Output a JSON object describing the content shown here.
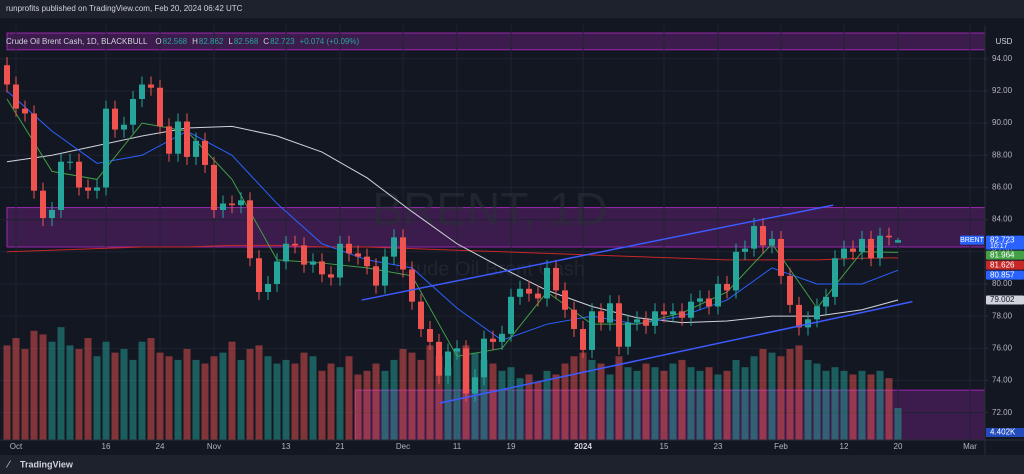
{
  "header": {
    "publisher": "runprofits published on TradingView.com, Feb 20, 2024 06:42 UTC",
    "brand": "TradingView"
  },
  "chart_data": {
    "type": "candlestick",
    "symbol": "Crude Oil Brent Cash, 1D, BLACKBULL",
    "ohlc_prefixes": [
      "O",
      "H",
      "L",
      "C"
    ],
    "change": "+0.074 (+0.09%)",
    "currency": "USD",
    "watermark": "BRENT, 1D",
    "watermark_subtitle": "Crude Oil Brent Cash",
    "ticker": "BRENT",
    "countdown": "10:17",
    "categories": [
      null,
      "Oct",
      null,
      null,
      null,
      null,
      null,
      null,
      null,
      null,
      null,
      "16",
      null,
      null,
      null,
      null,
      null,
      "24",
      null,
      null,
      null,
      null,
      null,
      "Nov",
      null,
      null,
      null,
      null,
      null,
      null,
      null,
      "13",
      null,
      null,
      null,
      null,
      null,
      "21",
      null,
      null,
      null,
      null,
      null,
      null,
      "Dec",
      null,
      null,
      null,
      null,
      null,
      "11",
      null,
      null,
      null,
      null,
      null,
      "19",
      null,
      null,
      null,
      null,
      null,
      null,
      null,
      "2024",
      null,
      null,
      null,
      null,
      null,
      null,
      null,
      null,
      "15",
      null,
      null,
      null,
      null,
      null,
      "23",
      null,
      null,
      null,
      null,
      null,
      null,
      "Feb",
      null,
      null,
      null,
      null,
      null,
      null,
      "12",
      null,
      null,
      null,
      null,
      null,
      "20",
      null,
      null,
      null,
      null,
      null,
      null,
      null,
      "Mar"
    ],
    "open": [
      93.6,
      92.4,
      90.9,
      90.6,
      85.8,
      84.1,
      84.6,
      87.6,
      87.6,
      86.0,
      85.8,
      86.0,
      90.9,
      89.6,
      89.9,
      91.5,
      92.4,
      92.2,
      89.8,
      88.1,
      90.1,
      87.9,
      88.9,
      87.4,
      84.6,
      85.0,
      84.9,
      85.2,
      81.6,
      79.5,
      80.0,
      81.4,
      82.5,
      82.4,
      81.2,
      81.4,
      80.6,
      80.4,
      82.5,
      81.9,
      81.7,
      81.1,
      79.9,
      81.7,
      82.9,
      80.9,
      78.9,
      77.2,
      76.4,
      74.3,
      75.8,
      76.0,
      73.2,
      74.2,
      76.6,
      76.4,
      76.9,
      79.2,
      79.7,
      79.4,
      79.1,
      81.0,
      79.6,
      78.4,
      77.2,
      75.9,
      78.3,
      77.6,
      78.8,
      76.1,
      77.6,
      77.8,
      77.4,
      78.3,
      78.1,
      78.3,
      77.9,
      78.9,
      79.1,
      78.6,
      80.0,
      79.6,
      82.0,
      82.2,
      83.6,
      82.4,
      82.8,
      80.5,
      78.7,
      77.3,
      77.8,
      78.6,
      79.2,
      81.6,
      82.2,
      82.0,
      82.8,
      81.6,
      83.0,
      82.568,
      null,
      null,
      null,
      null,
      null,
      null,
      null,
      null
    ],
    "high": [
      94.1,
      92.9,
      91.4,
      91.1,
      86.3,
      85.1,
      88.1,
      88.1,
      88.1,
      86.5,
      86.5,
      91.4,
      91.4,
      90.4,
      92.0,
      92.9,
      92.9,
      92.7,
      90.3,
      90.6,
      90.6,
      89.4,
      89.4,
      87.9,
      85.5,
      85.5,
      85.7,
      85.7,
      82.1,
      80.5,
      81.9,
      83.0,
      83.0,
      82.9,
      81.9,
      81.9,
      81.1,
      83.0,
      83.0,
      82.4,
      82.2,
      81.6,
      82.2,
      83.4,
      83.4,
      81.4,
      79.4,
      77.7,
      76.9,
      76.3,
      76.5,
      76.5,
      74.7,
      77.1,
      77.1,
      77.4,
      79.7,
      80.2,
      80.2,
      79.9,
      81.5,
      81.5,
      80.1,
      78.9,
      77.7,
      78.8,
      78.8,
      79.3,
      79.3,
      78.1,
      78.3,
      78.3,
      78.8,
      78.8,
      78.8,
      78.8,
      79.4,
      79.6,
      79.6,
      80.5,
      80.5,
      82.5,
      82.7,
      84.1,
      84.1,
      83.3,
      83.3,
      81.0,
      79.2,
      78.3,
      79.1,
      79.7,
      82.1,
      82.7,
      82.7,
      83.3,
      83.3,
      83.5,
      83.5,
      82.862,
      null,
      null,
      null,
      null,
      null,
      null,
      null,
      null
    ],
    "low": [
      91.9,
      90.4,
      90.1,
      85.3,
      83.6,
      83.6,
      84.1,
      87.1,
      85.5,
      85.3,
      85.3,
      85.5,
      89.1,
      89.1,
      89.4,
      91.0,
      91.7,
      89.3,
      87.6,
      87.6,
      87.4,
      87.4,
      86.9,
      84.1,
      84.1,
      84.4,
      84.4,
      81.1,
      79.0,
      79.0,
      79.5,
      80.9,
      81.9,
      80.7,
      80.7,
      80.1,
      79.9,
      79.9,
      81.4,
      81.2,
      80.6,
      79.4,
      79.4,
      81.2,
      80.4,
      78.4,
      76.7,
      75.9,
      73.8,
      73.8,
      75.3,
      72.7,
      72.7,
      73.7,
      75.9,
      75.9,
      76.4,
      78.7,
      78.9,
      78.6,
      78.6,
      79.1,
      77.9,
      76.7,
      75.4,
      75.4,
      77.1,
      77.1,
      75.6,
      75.6,
      77.1,
      76.9,
      76.9,
      77.6,
      77.6,
      77.4,
      77.4,
      78.4,
      78.1,
      78.1,
      79.1,
      79.1,
      81.5,
      81.7,
      81.9,
      81.9,
      80.0,
      78.2,
      76.8,
      76.8,
      77.3,
      78.1,
      78.7,
      81.1,
      81.5,
      81.5,
      81.1,
      81.1,
      82.4,
      82.568,
      null,
      null,
      null,
      null,
      null,
      null,
      null,
      null
    ],
    "close": [
      92.4,
      90.9,
      90.6,
      85.8,
      84.1,
      84.6,
      87.6,
      87.6,
      86.0,
      85.8,
      86.0,
      90.9,
      89.6,
      89.9,
      91.5,
      92.4,
      92.2,
      89.8,
      88.1,
      90.1,
      87.9,
      88.9,
      87.4,
      84.6,
      85.0,
      84.9,
      85.2,
      81.6,
      79.5,
      80.0,
      81.4,
      82.5,
      82.4,
      81.2,
      81.4,
      80.6,
      80.4,
      82.5,
      81.9,
      81.7,
      81.1,
      79.9,
      81.7,
      82.9,
      80.9,
      78.9,
      77.2,
      76.4,
      74.3,
      75.8,
      76.0,
      73.2,
      74.2,
      76.6,
      76.4,
      76.9,
      79.2,
      79.7,
      79.4,
      79.1,
      81.0,
      79.6,
      78.4,
      77.2,
      75.9,
      78.3,
      77.6,
      78.8,
      76.1,
      77.6,
      77.8,
      77.4,
      78.3,
      78.1,
      78.3,
      77.9,
      78.9,
      79.1,
      78.6,
      80.0,
      79.6,
      82.0,
      82.2,
      83.6,
      82.4,
      82.8,
      80.5,
      78.7,
      77.3,
      77.8,
      78.6,
      79.2,
      81.6,
      82.2,
      82.0,
      82.8,
      81.6,
      83.0,
      82.9,
      82.723,
      null,
      null,
      null,
      null,
      null,
      null,
      null,
      null
    ],
    "up_color": "#26a69a",
    "down_color": "#ef5350",
    "volume": {
      "ylim": [
        0,
        57000
      ],
      "last_label": "4.402K",
      "values": [
        13000,
        14000,
        12500,
        15000,
        14500,
        13500,
        15500,
        13000,
        12500,
        14000,
        11500,
        13500,
        12000,
        12500,
        11000,
        13500,
        14000,
        12000,
        11500,
        11000,
        12500,
        11000,
        10500,
        11500,
        12000,
        13500,
        11000,
        12500,
        13000,
        11500,
        10500,
        11000,
        10500,
        12000,
        11500,
        9500,
        10500,
        10000,
        11500,
        9000,
        9500,
        10500,
        9500,
        11000,
        12500,
        12000,
        11000,
        13000,
        11500,
        10000,
        12500,
        13000,
        12000,
        11000,
        10500,
        9500,
        10000,
        8500,
        9000,
        8000,
        9500,
        9000,
        10500,
        11500,
        12000,
        11000,
        10500,
        9000,
        11500,
        10000,
        9500,
        10500,
        10000,
        9500,
        10500,
        11000,
        10000,
        9500,
        10000,
        9000,
        9500,
        11000,
        10000,
        11500,
        12500,
        12000,
        11500,
        12500,
        13000,
        11000,
        10500,
        9500,
        10000,
        9500,
        9000,
        9500,
        9000,
        9500,
        8500,
        4402,
        null,
        null,
        null,
        null,
        null,
        null,
        null,
        null
      ]
    },
    "moving_averages": [
      {
        "color": "#c62828",
        "x": [
          0,
          5,
          10,
          15,
          20,
          25,
          30,
          35,
          40,
          45,
          50,
          55,
          60,
          65,
          70,
          75,
          80,
          85,
          90,
          95,
          99
        ],
        "values": [
          82.0,
          82.1,
          82.2,
          82.3,
          82.3,
          82.4,
          82.4,
          82.3,
          82.3,
          82.2,
          82.1,
          82.0,
          81.9,
          81.8,
          81.7,
          81.6,
          81.5,
          81.5,
          81.5,
          81.6,
          81.626
        ]
      },
      {
        "color": "#d1d4dc",
        "x": [
          0,
          5,
          10,
          15,
          20,
          25,
          30,
          35,
          40,
          45,
          50,
          55,
          60,
          65,
          70,
          75,
          80,
          85,
          90,
          95,
          99
        ],
        "values": [
          87.6,
          88.0,
          88.6,
          89.2,
          89.7,
          89.8,
          89.2,
          88.2,
          86.6,
          84.5,
          82.5,
          81.0,
          79.6,
          78.6,
          77.9,
          77.6,
          77.7,
          78.0,
          78.0,
          78.4,
          79.002
        ]
      },
      {
        "color": "#2962ff",
        "x": [
          0,
          5,
          10,
          15,
          20,
          25,
          30,
          35,
          40,
          45,
          50,
          55,
          60,
          65,
          70,
          75,
          80,
          85,
          90,
          95,
          99
        ],
        "values": [
          92.0,
          89.5,
          87.5,
          88.0,
          89.5,
          88.0,
          85.0,
          82.5,
          81.5,
          81.0,
          78.5,
          76.5,
          77.5,
          78.0,
          77.5,
          78.0,
          79.0,
          81.0,
          80.0,
          80.0,
          80.857
        ]
      },
      {
        "color": "#43a047",
        "x": [
          0,
          5,
          10,
          15,
          20,
          25,
          30,
          35,
          40,
          45,
          50,
          55,
          60,
          65,
          70,
          75,
          80,
          85,
          90,
          95,
          99
        ],
        "values": [
          91.5,
          87.0,
          86.5,
          90.0,
          89.5,
          86.5,
          81.5,
          81.3,
          81.0,
          80.5,
          75.5,
          76.0,
          79.5,
          77.5,
          77.5,
          78.2,
          79.5,
          82.5,
          78.5,
          82.0,
          81.964
        ]
      }
    ],
    "trendlines": [
      {
        "color": "#3d5afe",
        "x": [
          39.4,
          91.8
        ],
        "y": [
          79.0,
          84.9
        ]
      },
      {
        "color": "#3d5afe",
        "x": [
          48.1,
          100.6
        ],
        "y": [
          72.6,
          78.9
        ]
      }
    ],
    "zones": [
      {
        "color": "#9c27b0",
        "from": 82.3,
        "to": 84.75,
        "x_start": 0
      },
      {
        "color": "#9c27b0",
        "from": 70.3,
        "to": 73.4,
        "x_start": 38.7
      },
      {
        "color": "#9c27b0",
        "from": 94.56,
        "to": 95.6,
        "x_start": 0
      }
    ],
    "ylim": [
      70.3,
      96.1
    ],
    "yticks": [
      {
        "value": 72,
        "label": "72.00"
      },
      {
        "value": 74,
        "label": "74.00"
      },
      {
        "value": 76,
        "label": "76.00"
      },
      {
        "value": 78,
        "label": "78.00"
      },
      {
        "value": 80,
        "label": "80.00"
      },
      {
        "value": 82,
        "label": "82.00"
      },
      {
        "value": 84,
        "label": "84.00"
      },
      {
        "value": 86,
        "label": "86.00"
      },
      {
        "value": 88,
        "label": "88.00"
      },
      {
        "value": 90,
        "label": "90.00"
      },
      {
        "value": 92,
        "label": "92.00"
      },
      {
        "value": 94,
        "label": "94.00"
      }
    ],
    "grid": true
  }
}
